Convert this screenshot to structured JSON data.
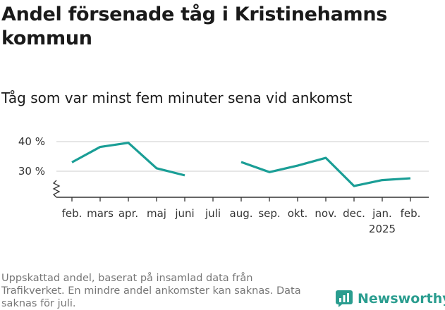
{
  "title": "Andel försenade tåg i Kristinehamns kommun",
  "subtitle": "Tåg som var minst fem minuter sena vid ankomst",
  "footnote": "Uppskattad andel, baserat på insamlad data från Trafikverket. En mindre andel ankomster kan saknas. Data saknas för juli.",
  "logo": {
    "text": "Newsworthy",
    "icon": "newsworthy-logo-icon"
  },
  "colors": {
    "line": "#1a9e96",
    "grid": "#dddddd",
    "axis": "#333333",
    "logo": "#2a9d8f"
  },
  "chart_data": {
    "type": "line",
    "categories": [
      "feb.",
      "mars",
      "apr.",
      "maj",
      "juni",
      "juli",
      "aug.",
      "sep.",
      "okt.",
      "nov.",
      "dec.",
      "jan.",
      "feb."
    ],
    "year_labels": [
      {
        "index": 11,
        "label": "2025"
      }
    ],
    "series": [
      {
        "values": [
          33.0,
          38.2,
          39.6,
          31.0,
          28.6,
          null,
          33.1,
          29.7,
          31.9,
          34.5,
          25.0,
          27.0,
          27.6
        ]
      }
    ],
    "y_ticks": [
      {
        "value": 30,
        "label": "30 %"
      },
      {
        "value": 40,
        "label": "40 %"
      }
    ],
    "ylim": [
      20,
      41
    ],
    "axis_break": true,
    "grid": true,
    "xlabel": "",
    "ylabel": ""
  }
}
